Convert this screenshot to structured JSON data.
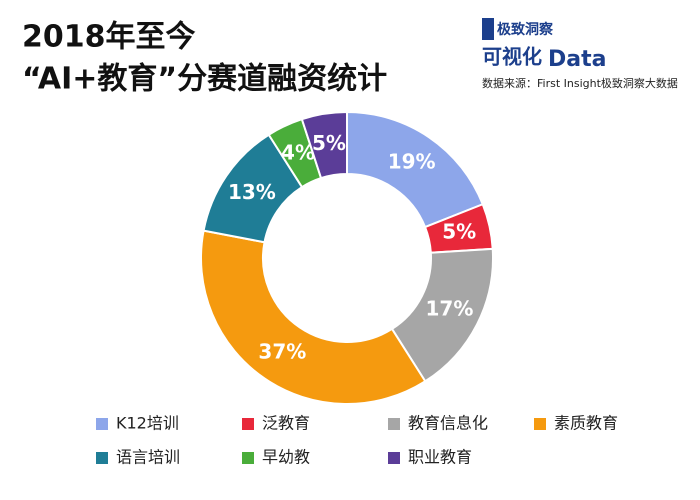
{
  "chart_data": {
    "type": "donut",
    "title": [
      "2018年至今",
      "“AI+教育”分赛道融资统计"
    ],
    "logo": {
      "brand": "极致洞察",
      "tagline": "可视化",
      "mark": "Data"
    },
    "source": "数据来源：First Insight极致洞察大数据",
    "categories": [
      "K12培训",
      "泛教育",
      "教育信息化",
      "素质教育",
      "语言培训",
      "早幼教",
      "职业教育"
    ],
    "values": [
      19,
      5,
      17,
      37,
      13,
      4,
      5
    ],
    "value_labels": [
      "19%",
      "5%",
      "17%",
      "37%",
      "13%",
      "4%",
      "5%"
    ],
    "colors": [
      "#8da6ea",
      "#e8283a",
      "#a6a6a6",
      "#f59a0f",
      "#1f7d96",
      "#4aad3a",
      "#5b3d98"
    ],
    "legend": "bottom"
  }
}
